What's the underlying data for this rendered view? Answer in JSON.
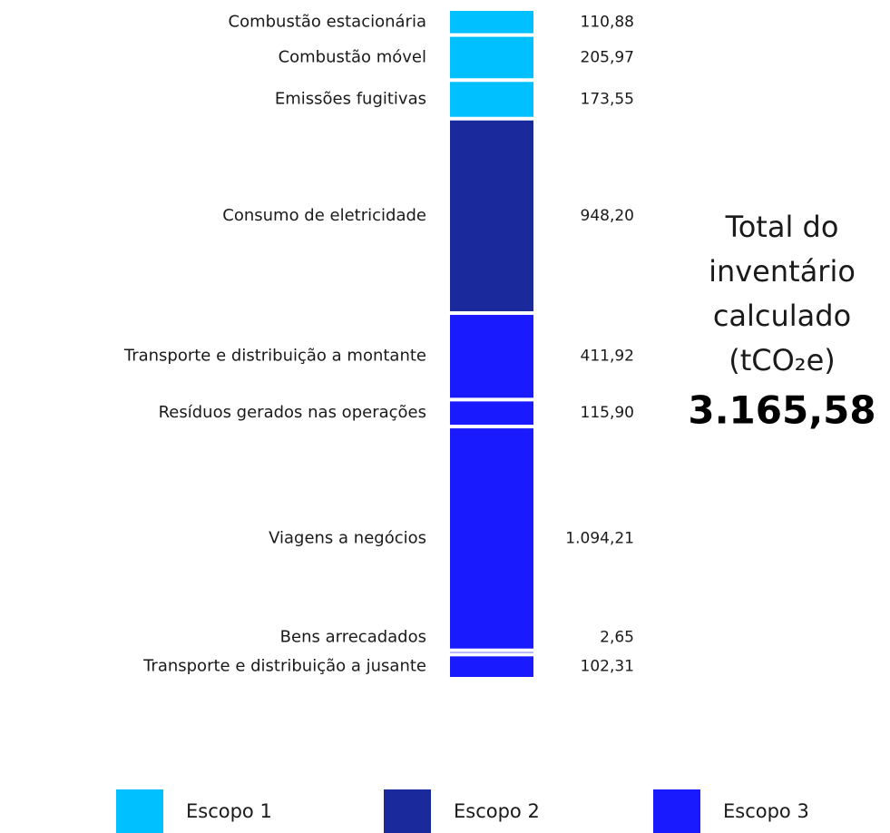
{
  "chart_data": {
    "type": "stacked-column",
    "categories": [
      "Combustão estacionária",
      "Combustão móvel",
      "Emissões fugitivas",
      "Consumo de eletricidade",
      "Transporte e distribuição a montante",
      "Resíduos gerados nas operações",
      "Viagens a negócios",
      "Bens arrecadados",
      "Transporte e distribuição a jusante"
    ],
    "values": [
      110.88,
      205.97,
      173.55,
      948.2,
      411.92,
      115.9,
      1094.21,
      2.65,
      102.31
    ],
    "value_labels": [
      "110,88",
      "205,97",
      "173,55",
      "948,20",
      "411,92",
      "115,90",
      "1.094,21",
      "2,65",
      "102,31"
    ],
    "colors": [
      "#00c0ff",
      "#00c0ff",
      "#00c0ff",
      "#1a2a9c",
      "#1a1aff",
      "#1a1aff",
      "#1a1aff",
      "#1a1aff",
      "#1a1aff"
    ],
    "total_title": [
      "Total do",
      "inventário",
      "calculado",
      "(tCO₂e)"
    ],
    "total": {
      "value": 3165.58,
      "label": "3.165,58"
    },
    "legend": [
      {
        "name": "Escopo 1",
        "color": "#00c0ff"
      },
      {
        "name": "Escopo 2",
        "color": "#1a2a9c"
      },
      {
        "name": "Escopo 3",
        "color": "#1a1aff"
      }
    ]
  }
}
